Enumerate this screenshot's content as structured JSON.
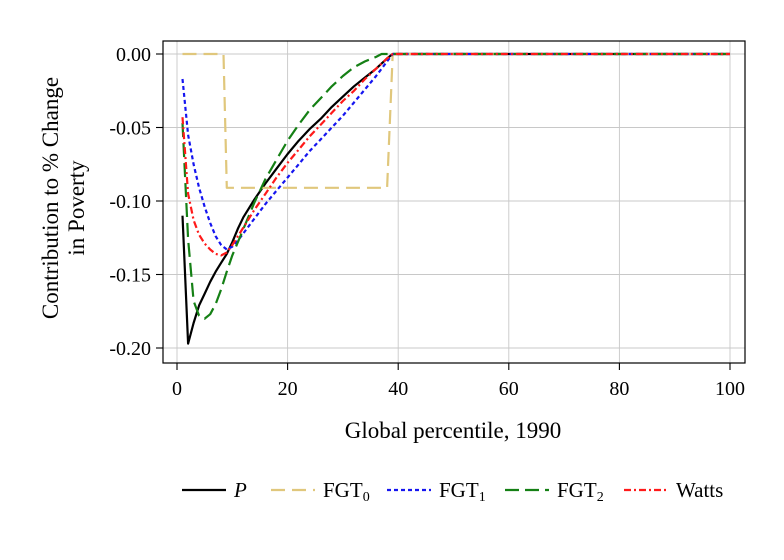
{
  "chart_data": {
    "type": "line",
    "xlabel": "Global percentile, 1990",
    "ylabel_line1": "Contribution to % Change",
    "ylabel_line2": "in Poverty",
    "xlim": [
      0,
      100
    ],
    "ylim": [
      -0.21,
      0.007
    ],
    "xticks": [
      0,
      20,
      40,
      60,
      80,
      100
    ],
    "xtick_labels": [
      "0",
      "20",
      "40",
      "60",
      "80",
      "100"
    ],
    "yticks": [
      0,
      -0.05,
      -0.1,
      -0.15,
      -0.2
    ],
    "ytick_labels": [
      "0.00",
      "-0.05",
      "-0.10",
      "-0.15",
      "-0.20"
    ],
    "grid": true,
    "legend_position": "bottom",
    "series": [
      {
        "name": "P",
        "name_main": "P",
        "name_sub": "",
        "italic": true,
        "color": "#000000",
        "dash": "",
        "points": [
          [
            1,
            -0.11
          ],
          [
            2,
            -0.197
          ],
          [
            3,
            -0.183
          ],
          [
            4,
            -0.171
          ],
          [
            5,
            -0.163
          ],
          [
            6,
            -0.155
          ],
          [
            7,
            -0.148
          ],
          [
            8,
            -0.142
          ],
          [
            9,
            -0.136
          ],
          [
            10,
            -0.128
          ],
          [
            11,
            -0.119
          ],
          [
            12,
            -0.111
          ],
          [
            14,
            -0.099
          ],
          [
            16,
            -0.088
          ],
          [
            18,
            -0.078
          ],
          [
            20,
            -0.068
          ],
          [
            22,
            -0.059
          ],
          [
            24,
            -0.051
          ],
          [
            26,
            -0.044
          ],
          [
            28,
            -0.036
          ],
          [
            30,
            -0.029
          ],
          [
            32,
            -0.022
          ],
          [
            34,
            -0.016
          ],
          [
            36,
            -0.01
          ],
          [
            38,
            -0.003
          ],
          [
            39,
            0.0
          ],
          [
            45,
            0.0
          ],
          [
            60,
            0.0
          ],
          [
            80,
            0.0
          ],
          [
            100,
            0.0
          ]
        ]
      },
      {
        "name": "FGT0",
        "name_main": "FGT",
        "name_sub": "0",
        "italic": false,
        "color": "#e0c77c",
        "dash": "14,7",
        "points": [
          [
            1,
            0.0
          ],
          [
            8.4,
            0.0
          ],
          [
            9,
            -0.091
          ],
          [
            38,
            -0.091
          ],
          [
            39,
            0.0
          ],
          [
            100,
            0.0
          ]
        ]
      },
      {
        "name": "FGT1",
        "name_main": "FGT",
        "name_sub": "1",
        "italic": false,
        "color": "#1515f0",
        "dash": "4,3",
        "points": [
          [
            1,
            -0.017
          ],
          [
            2,
            -0.055
          ],
          [
            3,
            -0.075
          ],
          [
            4,
            -0.091
          ],
          [
            5,
            -0.104
          ],
          [
            6,
            -0.115
          ],
          [
            7,
            -0.124
          ],
          [
            8,
            -0.13
          ],
          [
            9,
            -0.133
          ],
          [
            10,
            -0.131
          ],
          [
            11,
            -0.127
          ],
          [
            12,
            -0.122
          ],
          [
            14,
            -0.112
          ],
          [
            16,
            -0.102
          ],
          [
            18,
            -0.093
          ],
          [
            20,
            -0.084
          ],
          [
            22,
            -0.075
          ],
          [
            24,
            -0.066
          ],
          [
            26,
            -0.058
          ],
          [
            28,
            -0.05
          ],
          [
            30,
            -0.042
          ],
          [
            32,
            -0.033
          ],
          [
            34,
            -0.024
          ],
          [
            36,
            -0.015
          ],
          [
            38,
            -0.005
          ],
          [
            39,
            0.0
          ],
          [
            50,
            0.0
          ],
          [
            75,
            0.0
          ],
          [
            100,
            0.0
          ]
        ]
      },
      {
        "name": "FGT2",
        "name_main": "FGT",
        "name_sub": "2",
        "italic": false,
        "color": "#158015",
        "dash": "14,6",
        "points": [
          [
            1,
            -0.047
          ],
          [
            2,
            -0.126
          ],
          [
            3,
            -0.168
          ],
          [
            4,
            -0.178
          ],
          [
            5,
            -0.18
          ],
          [
            6,
            -0.177
          ],
          [
            7,
            -0.17
          ],
          [
            8,
            -0.16
          ],
          [
            9,
            -0.148
          ],
          [
            10,
            -0.137
          ],
          [
            12,
            -0.119
          ],
          [
            14,
            -0.101
          ],
          [
            16,
            -0.085
          ],
          [
            18,
            -0.072
          ],
          [
            20,
            -0.059
          ],
          [
            22,
            -0.048
          ],
          [
            24,
            -0.038
          ],
          [
            26,
            -0.03
          ],
          [
            28,
            -0.022
          ],
          [
            30,
            -0.015
          ],
          [
            32,
            -0.009
          ],
          [
            34,
            -0.005
          ],
          [
            36,
            -0.002
          ],
          [
            37,
            0.0
          ],
          [
            38,
            0.0
          ],
          [
            100,
            0.0
          ]
        ]
      },
      {
        "name": "Watts",
        "name_main": "Watts",
        "name_sub": "",
        "italic": false,
        "color": "#ff1a1a",
        "dash": "7,3,2,3",
        "points": [
          [
            1,
            -0.043
          ],
          [
            2,
            -0.095
          ],
          [
            3,
            -0.113
          ],
          [
            4,
            -0.123
          ],
          [
            5,
            -0.129
          ],
          [
            6,
            -0.133
          ],
          [
            7,
            -0.136
          ],
          [
            8,
            -0.137
          ],
          [
            9,
            -0.135
          ],
          [
            10,
            -0.13
          ],
          [
            11,
            -0.124
          ],
          [
            12,
            -0.118
          ],
          [
            14,
            -0.106
          ],
          [
            16,
            -0.095
          ],
          [
            18,
            -0.084
          ],
          [
            20,
            -0.074
          ],
          [
            22,
            -0.065
          ],
          [
            24,
            -0.056
          ],
          [
            26,
            -0.048
          ],
          [
            28,
            -0.04
          ],
          [
            30,
            -0.032
          ],
          [
            32,
            -0.025
          ],
          [
            34,
            -0.017
          ],
          [
            36,
            -0.01
          ],
          [
            38,
            -0.003
          ],
          [
            39,
            0.0
          ],
          [
            50,
            0.0
          ],
          [
            100,
            0.0
          ]
        ]
      }
    ]
  }
}
